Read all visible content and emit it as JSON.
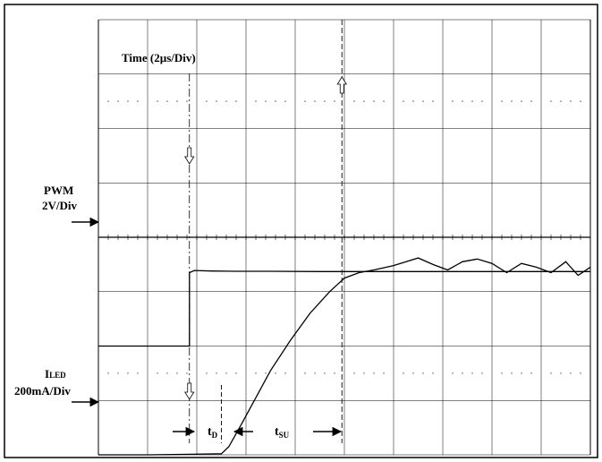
{
  "chart_data": {
    "type": "line",
    "title": "Time (2µs/Div)",
    "grid": true,
    "divisions": {
      "x": 10,
      "y": 8
    },
    "x_unit": "div",
    "xlim": [
      0,
      10
    ],
    "channels": {
      "pwm": {
        "label_line1": "PWM",
        "label_line2": "2V/Div",
        "ylim": [
          -4,
          12
        ],
        "x": [
          0,
          1.85,
          1.85,
          1.95,
          2.3,
          2.8,
          3.5,
          4.5,
          5.0,
          5.5,
          6.5,
          7.5,
          8.5,
          10
        ],
        "y": [
          0,
          0,
          2.7,
          2.78,
          2.76,
          2.75,
          2.75,
          2.74,
          2.74,
          2.74,
          2.74,
          2.74,
          2.74,
          2.74
        ]
      },
      "iled": {
        "label_prefix": "I",
        "label_sub": "LED",
        "label_line2": "200mA/Div",
        "ylim": [
          0,
          8
        ],
        "x": [
          0,
          1.0,
          1.85,
          2.5,
          2.65,
          2.9,
          3.2,
          3.5,
          3.9,
          4.3,
          4.7,
          5.0,
          5.3,
          5.6,
          6.0,
          6.5,
          6.8,
          7.1,
          7.4,
          7.7,
          8.0,
          8.3,
          8.6,
          8.9,
          9.2,
          9.5,
          9.75,
          10
        ],
        "y": [
          0,
          0,
          0.01,
          0.02,
          0.15,
          0.55,
          1.05,
          1.55,
          2.1,
          2.6,
          3.0,
          3.25,
          3.35,
          3.4,
          3.48,
          3.62,
          3.5,
          3.4,
          3.55,
          3.6,
          3.52,
          3.35,
          3.52,
          3.45,
          3.35,
          3.55,
          3.3,
          3.45
        ]
      }
    },
    "markers": [
      {
        "name": "t_pwm_edge",
        "x": 1.85
      },
      {
        "name": "t_current_start",
        "x": 2.5
      },
      {
        "name": "t_settled",
        "x": 4.95
      }
    ],
    "annotations": {
      "td_main": "t",
      "td_sub": "D",
      "tsu_main": "t",
      "tsu_sub": "SU"
    }
  }
}
